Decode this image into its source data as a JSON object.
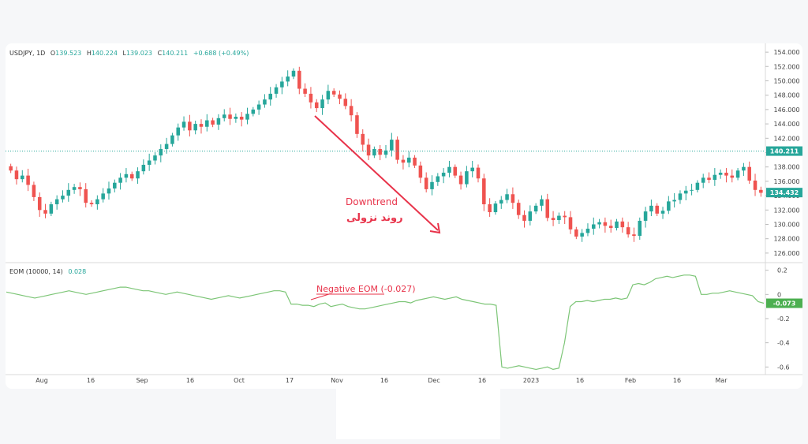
{
  "colors": {
    "up": "#26a69a",
    "down": "#ef5350",
    "annotation": "#e8334a",
    "eom": "#7cc576",
    "price_tag": "#26a69a",
    "grid": "#e8e8e8"
  },
  "header": {
    "symbol": "USDJPY, 1D",
    "o_label": "O",
    "o_value": "139.523",
    "h_label": "H",
    "h_value": "140.224",
    "l_label": "L",
    "l_value": "139.023",
    "c_label": "C",
    "c_value": "140.211",
    "change": "+0.688 (+0.49%)"
  },
  "indicator": {
    "name": "EOM (10000, 14)",
    "value": "0.028"
  },
  "annotations": {
    "downtrend": "Downtrend",
    "downtrend_fa": "روند نزولی",
    "negative": "Negative EOM (-0.027)"
  },
  "price_tags": {
    "last": "140.211",
    "current": "134.432",
    "eom_current": "-0.073"
  },
  "chart_data": [
    {
      "type": "candlestick",
      "symbol": "USDJPY",
      "interval": "1D",
      "ylim": [
        125,
        155
      ],
      "yticks": [
        "154.000",
        "152.000",
        "150.000",
        "148.000",
        "146.000",
        "144.000",
        "142.000",
        "140.000",
        "138.000",
        "136.000",
        "134.000",
        "132.000",
        "130.000",
        "128.000",
        "126.000"
      ],
      "xticks": [
        "Aug",
        "16",
        "Sep",
        "16",
        "Oct",
        "17",
        "Nov",
        "16",
        "Dec",
        "16",
        "2023",
        "16",
        "Feb",
        "16",
        "Mar"
      ],
      "close": [
        137.5,
        136.3,
        136.8,
        135.5,
        133.8,
        132.0,
        131.5,
        132.8,
        133.5,
        134.0,
        134.8,
        135.2,
        134.9,
        133.0,
        132.8,
        133.5,
        134.3,
        135.0,
        135.8,
        136.5,
        137.0,
        136.4,
        137.4,
        138.3,
        138.9,
        139.6,
        140.5,
        141.2,
        142.4,
        143.5,
        144.3,
        143.1,
        144.0,
        143.6,
        144.5,
        143.9,
        144.8,
        145.3,
        144.7,
        145.0,
        144.6,
        145.4,
        146.0,
        146.7,
        147.4,
        148.2,
        149.1,
        149.9,
        150.6,
        151.4,
        148.9,
        148.2,
        147.0,
        146.2,
        147.4,
        148.6,
        148.1,
        147.5,
        146.5,
        145.2,
        142.6,
        141.1,
        139.6,
        140.5,
        139.7,
        140.3,
        141.8,
        139.0,
        138.6,
        139.3,
        138.2,
        136.5,
        134.9,
        135.9,
        136.7,
        137.2,
        138.0,
        136.8,
        135.6,
        137.4,
        137.9,
        136.4,
        132.8,
        131.7,
        132.9,
        133.4,
        134.2,
        133.0,
        131.3,
        130.5,
        131.8,
        132.6,
        133.5,
        130.9,
        130.6,
        131.2,
        131.0,
        129.3,
        128.3,
        128.8,
        129.4,
        130.0,
        130.3,
        129.8,
        129.5,
        130.4,
        129.6,
        128.6,
        128.4,
        130.5,
        131.8,
        132.6,
        131.5,
        131.9,
        133.2,
        133.4,
        134.3,
        134.7,
        134.8,
        135.8,
        136.5,
        136.2,
        136.9,
        137.2,
        136.8,
        136.5,
        137.5,
        138.0,
        136.1,
        134.8,
        134.4
      ],
      "last_price": 140.211,
      "current_price": 134.432
    },
    {
      "type": "line",
      "name": "EOM (10000, 14)",
      "ylim": [
        -0.65,
        0.25
      ],
      "yticks": [
        "0.2",
        "0",
        "-0.2",
        "-0.4",
        "-0.6"
      ],
      "values": [
        0.02,
        0.01,
        0.0,
        -0.01,
        -0.02,
        -0.03,
        -0.02,
        -0.01,
        0.0,
        0.01,
        0.02,
        0.03,
        0.02,
        0.01,
        0.0,
        0.01,
        0.02,
        0.03,
        0.04,
        0.05,
        0.06,
        0.06,
        0.05,
        0.04,
        0.03,
        0.03,
        0.02,
        0.01,
        0.0,
        0.01,
        0.02,
        0.01,
        0.0,
        -0.01,
        -0.02,
        -0.03,
        -0.04,
        -0.03,
        -0.02,
        -0.01,
        -0.02,
        -0.03,
        -0.02,
        -0.01,
        0.0,
        0.01,
        0.02,
        0.03,
        0.03,
        0.02,
        -0.08,
        -0.08,
        -0.09,
        -0.09,
        -0.1,
        -0.08,
        -0.07,
        -0.1,
        -0.09,
        -0.08,
        -0.1,
        -0.11,
        -0.12,
        -0.12,
        -0.11,
        -0.1,
        -0.09,
        -0.08,
        -0.07,
        -0.06,
        -0.06,
        -0.07,
        -0.05,
        -0.04,
        -0.03,
        -0.02,
        -0.03,
        -0.04,
        -0.03,
        -0.02,
        -0.04,
        -0.05,
        -0.06,
        -0.07,
        -0.08,
        -0.08,
        -0.09,
        -0.6,
        -0.61,
        -0.6,
        -0.59,
        -0.6,
        -0.61,
        -0.62,
        -0.61,
        -0.6,
        -0.62,
        -0.61,
        -0.4,
        -0.1,
        -0.06,
        -0.06,
        -0.05,
        -0.06,
        -0.05,
        -0.04,
        -0.04,
        -0.03,
        -0.04,
        -0.03,
        0.08,
        0.09,
        0.08,
        0.1,
        0.13,
        0.14,
        0.15,
        0.14,
        0.15,
        0.16,
        0.16,
        0.15,
        0.0,
        0.0,
        0.01,
        0.01,
        0.02,
        0.03,
        0.02,
        0.01,
        0.0,
        -0.01,
        -0.06,
        -0.073
      ]
    }
  ]
}
